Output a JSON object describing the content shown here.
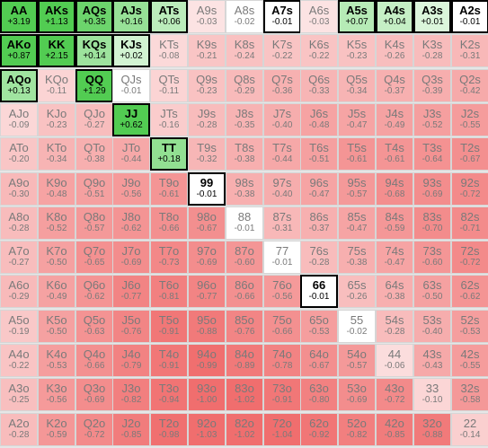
{
  "grid": [
    [
      [
        "AA",
        "+3.19"
      ],
      [
        "AKs",
        "+1.13"
      ],
      [
        "AQs",
        "+0.35"
      ],
      [
        "AJs",
        "+0.16"
      ],
      [
        "ATs",
        "+0.06"
      ],
      [
        "A9s",
        "-0.03"
      ],
      [
        "A8s",
        "-0.02"
      ],
      [
        "A7s",
        "-0.01"
      ],
      [
        "A6s",
        "-0.03"
      ],
      [
        "A5s",
        "+0.07"
      ],
      [
        "A4s",
        "+0.04"
      ],
      [
        "A3s",
        "+0.01"
      ],
      [
        "A2s",
        "-0.01"
      ]
    ],
    [
      [
        "AKo",
        "+0.87"
      ],
      [
        "KK",
        "+2.15"
      ],
      [
        "KQs",
        "+0.14"
      ],
      [
        "KJs",
        "+0.02"
      ],
      [
        "KTs",
        "-0.08"
      ],
      [
        "K9s",
        "-0.21"
      ],
      [
        "K8s",
        "-0.24"
      ],
      [
        "K7s",
        "-0.22"
      ],
      [
        "K6s",
        "-0.22"
      ],
      [
        "K5s",
        "-0.23"
      ],
      [
        "K4s",
        "-0.26"
      ],
      [
        "K3s",
        "-0.28"
      ],
      [
        "K2s",
        "-0.31"
      ]
    ],
    [
      [
        "AQo",
        "+0.13"
      ],
      [
        "KQo",
        "-0.11"
      ],
      [
        "QQ",
        "+1.29"
      ],
      [
        "QJs",
        "-0.01"
      ],
      [
        "QTs",
        "-0.11"
      ],
      [
        "Q9s",
        "-0.23"
      ],
      [
        "Q8s",
        "-0.29"
      ],
      [
        "Q7s",
        "-0.36"
      ],
      [
        "Q6s",
        "-0.33"
      ],
      [
        "Q5s",
        "-0.34"
      ],
      [
        "Q4s",
        "-0.37"
      ],
      [
        "Q3s",
        "-0.39"
      ],
      [
        "Q2s",
        "-0.42"
      ]
    ],
    [
      [
        "AJo",
        "-0.09"
      ],
      [
        "KJo",
        "-0.23"
      ],
      [
        "QJo",
        "-0.27"
      ],
      [
        "JJ",
        "+0.62"
      ],
      [
        "JTs",
        "-0.16"
      ],
      [
        "J9s",
        "-0.28"
      ],
      [
        "J8s",
        "-0.35"
      ],
      [
        "J7s",
        "-0.40"
      ],
      [
        "J6s",
        "-0.48"
      ],
      [
        "J5s",
        "-0.47"
      ],
      [
        "J4s",
        "-0.49"
      ],
      [
        "J3s",
        "-0.52"
      ],
      [
        "J2s",
        "-0.55"
      ]
    ],
    [
      [
        "ATo",
        "-0.20"
      ],
      [
        "KTo",
        "-0.34"
      ],
      [
        "QTo",
        "-0.38"
      ],
      [
        "JTo",
        "-0.44"
      ],
      [
        "TT",
        "+0.18"
      ],
      [
        "T9s",
        "-0.32"
      ],
      [
        "T8s",
        "-0.38"
      ],
      [
        "T7s",
        "-0.44"
      ],
      [
        "T6s",
        "-0.51"
      ],
      [
        "T5s",
        "-0.61"
      ],
      [
        "T4s",
        "-0.61"
      ],
      [
        "T3s",
        "-0.64"
      ],
      [
        "T2s",
        "-0.67"
      ]
    ],
    [
      [
        "A9o",
        "-0.30"
      ],
      [
        "K9o",
        "-0.48"
      ],
      [
        "Q9o",
        "-0.51"
      ],
      [
        "J9o",
        "-0.56"
      ],
      [
        "T9o",
        "-0.61"
      ],
      [
        "99",
        "-0.01"
      ],
      [
        "98s",
        "-0.38"
      ],
      [
        "97s",
        "-0.40"
      ],
      [
        "96s",
        "-0.47"
      ],
      [
        "95s",
        "-0.57"
      ],
      [
        "94s",
        "-0.68"
      ],
      [
        "93s",
        "-0.69"
      ],
      [
        "92s",
        "-0.72"
      ]
    ],
    [
      [
        "A8o",
        "-0.28"
      ],
      [
        "K8o",
        "-0.52"
      ],
      [
        "Q8o",
        "-0.57"
      ],
      [
        "J8o",
        "-0.62"
      ],
      [
        "T8o",
        "-0.66"
      ],
      [
        "98o",
        "-0.67"
      ],
      [
        "88",
        "-0.01"
      ],
      [
        "87s",
        "-0.31"
      ],
      [
        "86s",
        "-0.37"
      ],
      [
        "85s",
        "-0.47"
      ],
      [
        "84s",
        "-0.59"
      ],
      [
        "83s",
        "-0.70"
      ],
      [
        "82s",
        "-0.71"
      ]
    ],
    [
      [
        "A7o",
        "-0.27"
      ],
      [
        "K7o",
        "-0.50"
      ],
      [
        "Q7o",
        "-0.65"
      ],
      [
        "J7o",
        "-0.69"
      ],
      [
        "T7o",
        "-0.73"
      ],
      [
        "97o",
        "-0.69"
      ],
      [
        "87o",
        "-0.60"
      ],
      [
        "77",
        "-0.01"
      ],
      [
        "76s",
        "-0.28"
      ],
      [
        "75s",
        "-0.38"
      ],
      [
        "74s",
        "-0.47"
      ],
      [
        "73s",
        "-0.60"
      ],
      [
        "72s",
        "-0.72"
      ]
    ],
    [
      [
        "A6o",
        "-0.29"
      ],
      [
        "K6o",
        "-0.49"
      ],
      [
        "Q6o",
        "-0.62"
      ],
      [
        "J6o",
        "-0.77"
      ],
      [
        "T6o",
        "-0.81"
      ],
      [
        "96o",
        "-0.77"
      ],
      [
        "86o",
        "-0.66"
      ],
      [
        "76o",
        "-0.56"
      ],
      [
        "66",
        "-0.01"
      ],
      [
        "65s",
        "-0.26"
      ],
      [
        "64s",
        "-0.38"
      ],
      [
        "63s",
        "-0.50"
      ],
      [
        "62s",
        "-0.62"
      ]
    ],
    [
      [
        "A5o",
        "-0.19"
      ],
      [
        "K5o",
        "-0.50"
      ],
      [
        "Q5o",
        "-0.63"
      ],
      [
        "J5o",
        "-0.76"
      ],
      [
        "T5o",
        "-0.91"
      ],
      [
        "95o",
        "-0.88"
      ],
      [
        "85o",
        "-0.76"
      ],
      [
        "75o",
        "-0.66"
      ],
      [
        "65o",
        "-0.53"
      ],
      [
        "55",
        "-0.02"
      ],
      [
        "54s",
        "-0.28"
      ],
      [
        "53s",
        "-0.40"
      ],
      [
        "52s",
        "-0.53"
      ]
    ],
    [
      [
        "A4o",
        "-0.22"
      ],
      [
        "K4o",
        "-0.53"
      ],
      [
        "Q4o",
        "-0.66"
      ],
      [
        "J4o",
        "-0.79"
      ],
      [
        "T4o",
        "-0.91"
      ],
      [
        "94o",
        "-0.99"
      ],
      [
        "84o",
        "-0.89"
      ],
      [
        "74o",
        "-0.78"
      ],
      [
        "64o",
        "-0.67"
      ],
      [
        "54o",
        "-0.57"
      ],
      [
        "44",
        "-0.06"
      ],
      [
        "43s",
        "-0.43"
      ],
      [
        "42s",
        "-0.55"
      ]
    ],
    [
      [
        "A3o",
        "-0.25"
      ],
      [
        "K3o",
        "-0.56"
      ],
      [
        "Q3o",
        "-0.69"
      ],
      [
        "J3o",
        "-0.82"
      ],
      [
        "T3o",
        "-0.94"
      ],
      [
        "93o",
        "-1.00"
      ],
      [
        "83o",
        "-1.02"
      ],
      [
        "73o",
        "-0.91"
      ],
      [
        "63o",
        "-0.80"
      ],
      [
        "53o",
        "-0.69"
      ],
      [
        "43o",
        "-0.72"
      ],
      [
        "33",
        "-0.10"
      ],
      [
        "32s",
        "-0.58"
      ]
    ],
    [
      [
        "A2o",
        "-0.28"
      ],
      [
        "K2o",
        "-0.59"
      ],
      [
        "Q2o",
        "-0.72"
      ],
      [
        "J2o",
        "-0.85"
      ],
      [
        "T2o",
        "-0.98"
      ],
      [
        "92o",
        "-1.03"
      ],
      [
        "82o",
        "-1.02"
      ],
      [
        "72o",
        "-1.04"
      ],
      [
        "62o",
        "-0.92"
      ],
      [
        "52o",
        "-0.82"
      ],
      [
        "42o",
        "-0.85"
      ],
      [
        "32o",
        "-0.88"
      ],
      [
        "22",
        "-0.14"
      ]
    ]
  ],
  "highlighted": [
    "AA",
    "AKs",
    "AQs",
    "AJs",
    "ATs",
    "A7s",
    "A5s",
    "A4s",
    "A3s",
    "A2s",
    "AKo",
    "KK",
    "KQs",
    "KJs",
    "AQo",
    "QQ",
    "JJ",
    "TT",
    "99",
    "66"
  ],
  "colors": {
    "positive_strong": "#52cc52",
    "positive_light": "#d2f5d2",
    "negative_strong": "#f06e6e",
    "negative_light": "#fdecec",
    "border": "#d6d6d6",
    "highlight_border": "#000000",
    "text_default": "#7a7a7a",
    "text_highlight": "#000000"
  }
}
